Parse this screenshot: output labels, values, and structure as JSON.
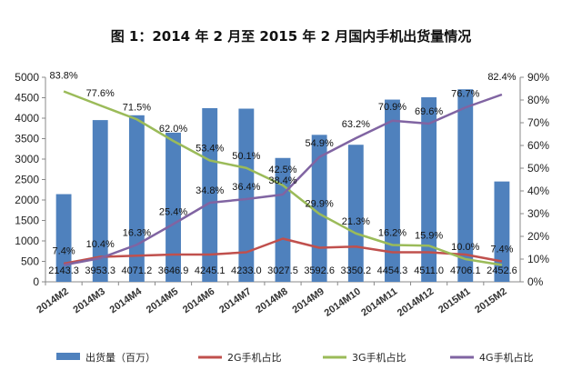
{
  "chart_data": {
    "type": "bar",
    "title": "图 1：2014 年 2 月至 2015 年 2 月国内手机出货量情况",
    "categories": [
      "2014M2",
      "2014M3",
      "2014M4",
      "2014M5",
      "2014M6",
      "2014M7",
      "2014M8",
      "2014M9",
      "2014M10",
      "2014M11",
      "2014M12",
      "2015M1",
      "2015M2"
    ],
    "y_left": {
      "min": 0,
      "max": 5000,
      "step": 500,
      "ticks": [
        "0",
        "500",
        "1000",
        "1500",
        "2000",
        "2500",
        "3000",
        "3500",
        "4000",
        "4500",
        "5000"
      ]
    },
    "y_right": {
      "min": 0,
      "max": 90,
      "step": 10,
      "ticks": [
        "0%",
        "10%",
        "20%",
        "30%",
        "40%",
        "50%",
        "60%",
        "70%",
        "80%",
        "90%"
      ]
    },
    "series": [
      {
        "name": "出货量（百万）",
        "kind": "bar",
        "axis": "left",
        "color": "#4f81bd",
        "values": [
          2143.3,
          3953.3,
          4071.2,
          3646.9,
          4245.1,
          4233.0,
          3027.5,
          3592.6,
          3350.2,
          4454.3,
          4511.0,
          4706.1,
          2452.6
        ],
        "labels": [
          "2143.3",
          "3953.3",
          "4071.2",
          "3646.9",
          "4245.1",
          "4233.0",
          "3027.5",
          "3592.6",
          "3350.2",
          "4454.3",
          "4511.0",
          "4706.1",
          "2452.6"
        ]
      },
      {
        "name": "2G手机占比",
        "kind": "line",
        "axis": "right",
        "color": "#c0504d",
        "values": [
          8.0,
          11.0,
          11.5,
          12.0,
          12.0,
          13.0,
          19.0,
          15.0,
          15.5,
          13.0,
          13.0,
          12.0,
          9.0
        ],
        "labels": [
          "",
          "",
          "",
          "",
          "",
          "",
          "",
          "",
          "",
          "",
          "",
          "",
          ""
        ]
      },
      {
        "name": "3G手机占比",
        "kind": "line",
        "axis": "right",
        "color": "#9bbb59",
        "values": [
          83.8,
          77.6,
          71.5,
          62.0,
          53.4,
          50.1,
          42.5,
          29.9,
          21.3,
          16.2,
          15.9,
          10.0,
          7.4
        ],
        "labels": [
          "83.8%",
          "77.6%",
          "71.5%",
          "62.0%",
          "53.4%",
          "50.1%",
          "42.5%",
          "29.9%",
          "21.3%",
          "16.2%",
          "15.9%",
          "10.0%",
          "7.4%"
        ]
      },
      {
        "name": "4G手机占比",
        "kind": "line",
        "axis": "right",
        "color": "#8064a2",
        "values": [
          7.4,
          10.4,
          16.3,
          25.4,
          34.8,
          36.4,
          38.4,
          54.9,
          63.2,
          70.9,
          69.6,
          76.7,
          82.4
        ],
        "labels": [
          "7.4%",
          "10.4%",
          "16.3%",
          "25.4%",
          "34.8%",
          "36.4%",
          "38.4%",
          "54.9%",
          "63.2%",
          "70.9%",
          "69.6%",
          "76.7%",
          "82.4%"
        ]
      }
    ],
    "legend": {
      "position": "bottom",
      "items": [
        "出货量（百万）",
        "2G手机占比",
        "3G手机占比",
        "4G手机占比"
      ]
    },
    "grid": false
  }
}
